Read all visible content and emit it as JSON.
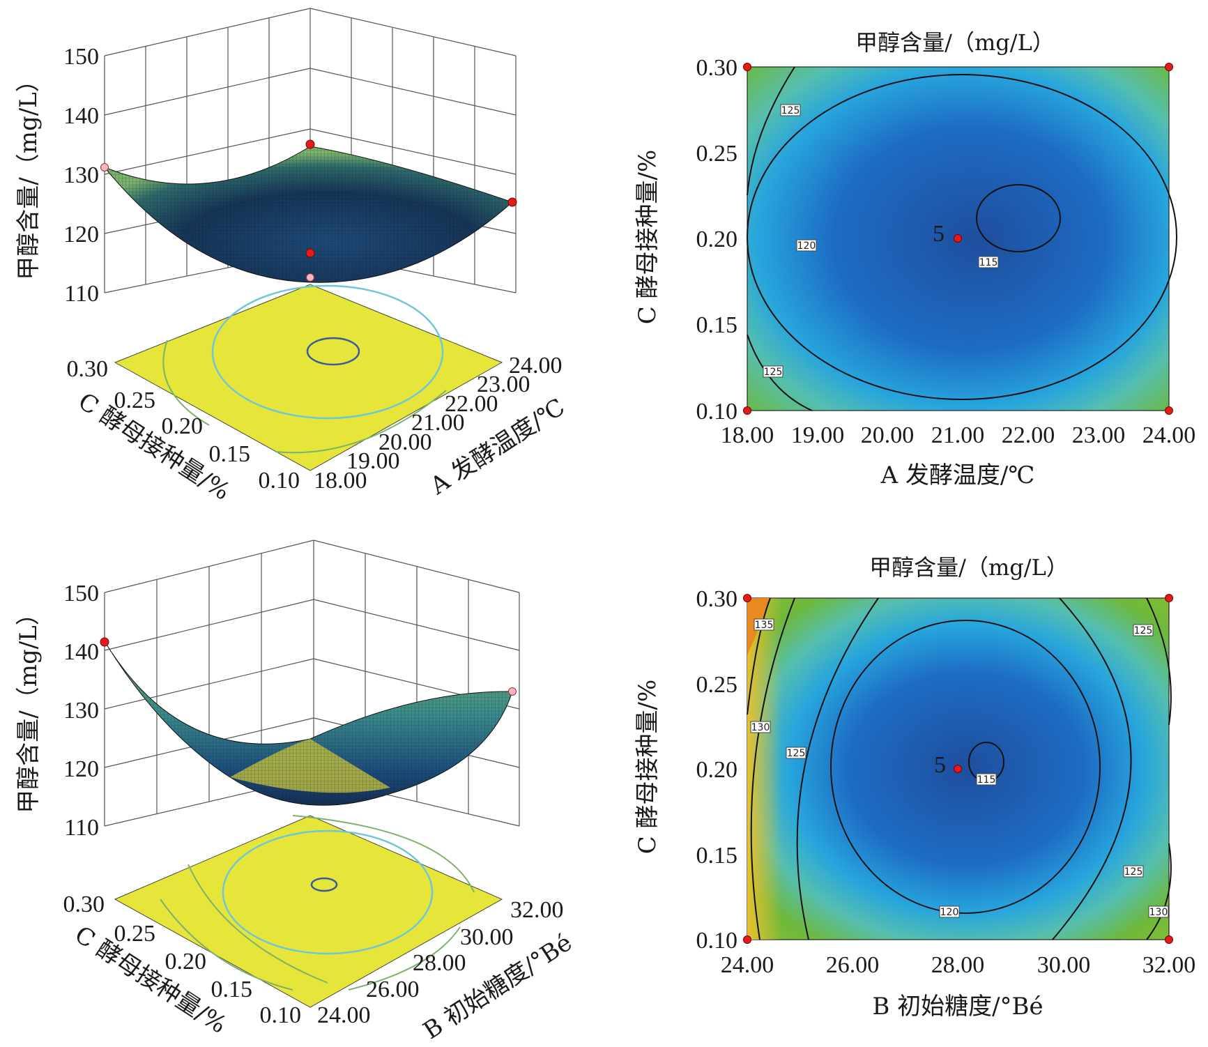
{
  "chart_data": [
    {
      "id": "p1",
      "type": "surface",
      "zlabel": "甲醇含量/（mg/L）",
      "xlabel": "C 酵母接种量/%",
      "ylabel": "A 发酵温度/℃",
      "z_ticks": [
        "150",
        "140",
        "130",
        "120",
        "110"
      ],
      "x_ticks": [
        "0.30",
        "0.25",
        "0.20",
        "0.15",
        "0.10"
      ],
      "y_ticks": [
        "18.00",
        "19.00",
        "20.00",
        "21.00",
        "22.00",
        "23.00",
        "24.00"
      ],
      "zlim": [
        110,
        150
      ],
      "xlim": [
        0.1,
        0.3
      ],
      "ylim": [
        18,
        24
      ],
      "surface_min": 114.5,
      "colors": {
        "floor": "#e6e63a",
        "surface_low": "#1b3a6b",
        "surface_high": "#7bb36a"
      }
    },
    {
      "id": "p2",
      "type": "contour",
      "title": "甲醇含量/（mg/L）",
      "xlabel": "A 发酵温度/℃",
      "ylabel": "C 酵母接种量/%",
      "x_ticks": [
        "18.00",
        "19.00",
        "20.00",
        "21.00",
        "22.00",
        "23.00",
        "24.00"
      ],
      "y_ticks": [
        "0.30",
        "0.25",
        "0.20",
        "0.15",
        "0.10"
      ],
      "xlim": [
        18,
        24
      ],
      "ylim": [
        0.1,
        0.3
      ],
      "contour_labels": [
        "125",
        "120",
        "115",
        "125"
      ],
      "center_label": "5",
      "center_point": [
        21.0,
        0.2
      ],
      "design_points": [
        [
          18,
          0.3
        ],
        [
          24,
          0.3
        ],
        [
          18,
          0.1
        ],
        [
          24,
          0.1
        ],
        [
          21,
          0.2
        ]
      ]
    },
    {
      "id": "p3",
      "type": "surface",
      "zlabel": "甲醇含量/（mg/L）",
      "xlabel": "C 酵母接种量/%",
      "ylabel": "B 初始糖度/°Bé",
      "z_ticks": [
        "150",
        "140",
        "130",
        "120",
        "110"
      ],
      "x_ticks": [
        "0.30",
        "0.25",
        "0.20",
        "0.15",
        "0.10"
      ],
      "y_ticks": [
        "24.00",
        "26.00",
        "28.00",
        "30.00",
        "32.00"
      ],
      "zlim": [
        110,
        150
      ],
      "xlim": [
        0.1,
        0.3
      ],
      "ylim": [
        24,
        32
      ],
      "surface_min": 114.5
    },
    {
      "id": "p4",
      "type": "contour",
      "title": "甲醇含量/（mg/L）",
      "xlabel": "B 初始糖度/°Bé",
      "ylabel": "C 酵母接种量/%",
      "x_ticks": [
        "24.00",
        "26.00",
        "28.00",
        "30.00",
        "32.00"
      ],
      "y_ticks": [
        "0.30",
        "0.25",
        "0.20",
        "0.15",
        "0.10"
      ],
      "xlim": [
        24,
        32
      ],
      "ylim": [
        0.1,
        0.3
      ],
      "contour_labels": [
        "135",
        "130",
        "125",
        "115",
        "120",
        "125",
        "125",
        "130"
      ],
      "center_label": "5",
      "center_point": [
        28.0,
        0.2
      ],
      "design_points": [
        [
          24,
          0.3
        ],
        [
          32,
          0.3
        ],
        [
          24,
          0.1
        ],
        [
          32,
          0.1
        ],
        [
          28,
          0.2
        ]
      ]
    }
  ]
}
